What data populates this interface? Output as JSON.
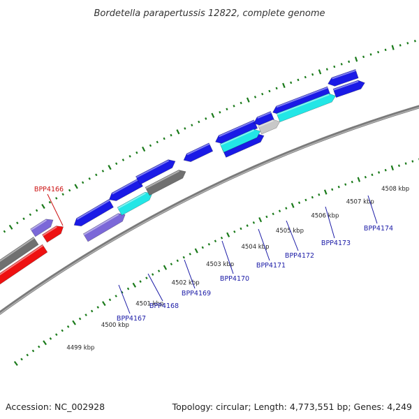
{
  "title": "Bordetella parapertussis 12822, complete genome",
  "footer": {
    "accession": "Accession: NC_002928",
    "topology": "Topology: circular; Length: 4,773,551 bp; Genes: 4,249"
  },
  "colors": {
    "backbone": "#8c8c8c",
    "tick": "#1a7a1a",
    "blue": "#1a1ae6",
    "cyan": "#22e6e6",
    "gray": "#707070",
    "purple": "#7b68d8",
    "red": "#ee1111",
    "lightgray": "#c8c8c8",
    "label_blue": "#1a1aa6",
    "label_red": "#cc1111"
  },
  "kbp_labels": [
    "4499 kbp",
    "4500 kbp",
    "4501 kbp",
    "4502 kbp",
    "4503 kbp",
    "4504 kbp",
    "4505 kbp",
    "4506 kbp",
    "4507 kbp",
    "4508 kbp"
  ],
  "gene_labels": [
    {
      "name": "BPP4166",
      "color": "red"
    },
    {
      "name": "BPP4167",
      "color": "blue"
    },
    {
      "name": "BPP4168",
      "color": "blue"
    },
    {
      "name": "BPP4169",
      "color": "blue"
    },
    {
      "name": "BPP4170",
      "color": "blue"
    },
    {
      "name": "BPP4171",
      "color": "blue"
    },
    {
      "name": "BPP4172",
      "color": "blue"
    },
    {
      "name": "BPP4173",
      "color": "blue"
    },
    {
      "name": "BPP4174",
      "color": "blue"
    }
  ]
}
